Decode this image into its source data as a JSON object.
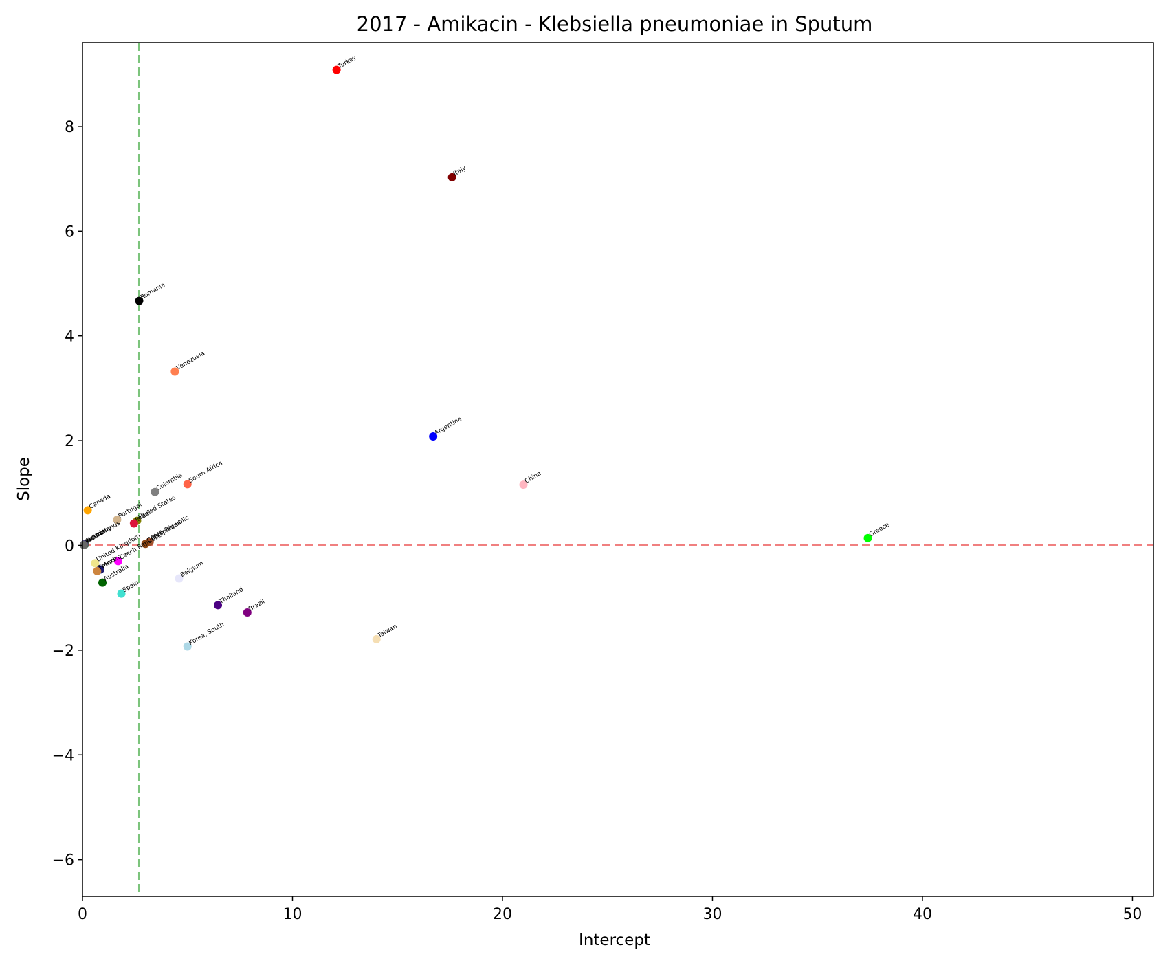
{
  "chart_data": {
    "type": "scatter",
    "title": "2017 - Amikacin - Klebsiella pneumoniae in Sputum",
    "xlabel": "Intercept",
    "ylabel": "Slope",
    "xlim": [
      0,
      51
    ],
    "ylim": [
      -6.7,
      9.6
    ],
    "xticks": [
      0,
      10,
      20,
      30,
      40,
      50
    ],
    "yticks": [
      -6,
      -4,
      -2,
      0,
      2,
      4,
      6,
      8
    ],
    "grid": false,
    "reference_lines": [
      {
        "orientation": "horizontal",
        "value": 0,
        "color": "#f08080",
        "style": "dashed"
      },
      {
        "orientation": "vertical",
        "value": 2.7,
        "color": "#7cc47c",
        "style": "dashed"
      }
    ],
    "points": [
      {
        "label": "Turkey",
        "x": 12.1,
        "y": 9.08,
        "color": "#ff0000"
      },
      {
        "label": "Italy",
        "x": 17.6,
        "y": 7.03,
        "color": "#800000"
      },
      {
        "label": "Romania",
        "x": 2.7,
        "y": 4.67,
        "color": "#000000"
      },
      {
        "label": "Venezuela",
        "x": 4.4,
        "y": 3.32,
        "color": "#ff7f50"
      },
      {
        "label": "Argentina",
        "x": 16.7,
        "y": 2.08,
        "color": "#0000ff"
      },
      {
        "label": "China",
        "x": 21.0,
        "y": 1.16,
        "color": "#ffb6c1"
      },
      {
        "label": "South Africa",
        "x": 5.0,
        "y": 1.17,
        "color": "#ff6347"
      },
      {
        "label": "Colombia",
        "x": 3.45,
        "y": 1.02,
        "color": "#808080"
      },
      {
        "label": "Canada",
        "x": 0.25,
        "y": 0.67,
        "color": "#ffa500"
      },
      {
        "label": "Portugal",
        "x": 1.65,
        "y": 0.49,
        "color": "#d2b48c"
      },
      {
        "label": "United States",
        "x": 2.6,
        "y": 0.47,
        "color": "#808000"
      },
      {
        "label": "Israel",
        "x": 2.45,
        "y": 0.42,
        "color": "#dc143c"
      },
      {
        "label": "Philippines",
        "x": 3.2,
        "y": 0.07,
        "color": "#a0522d"
      },
      {
        "label": "Czech Republic",
        "x": 3.0,
        "y": 0.03,
        "color": "#8b4513"
      },
      {
        "label": "Greece",
        "x": 37.4,
        "y": 0.14,
        "color": "#00ff00"
      },
      {
        "label": "Netherlands",
        "x": 0.12,
        "y": 0.02,
        "color": "#2f4f4f"
      },
      {
        "label": "Germany",
        "x": 0.1,
        "y": 0.02,
        "color": "#556b2f"
      },
      {
        "label": "Austria",
        "x": 0.08,
        "y": 0.02,
        "color": "#483d8b"
      },
      {
        "label": "Ireland",
        "x": 0.06,
        "y": 0.01,
        "color": "#696969"
      },
      {
        "label": "United Kingdom",
        "x": 0.6,
        "y": -0.34,
        "color": "#f0e68c"
      },
      {
        "label": "Czech Republic",
        "x": 1.7,
        "y": -0.3,
        "color": "#ff00ff"
      },
      {
        "label": "Mexico",
        "x": 0.85,
        "y": -0.46,
        "color": "#191970"
      },
      {
        "label": "France",
        "x": 0.7,
        "y": -0.49,
        "color": "#cd853f"
      },
      {
        "label": "Australia",
        "x": 0.95,
        "y": -0.71,
        "color": "#006400"
      },
      {
        "label": "Belgium",
        "x": 4.6,
        "y": -0.63,
        "color": "#e6e6fa"
      },
      {
        "label": "Spain",
        "x": 1.85,
        "y": -0.92,
        "color": "#40e0d0"
      },
      {
        "label": "Thailand",
        "x": 6.45,
        "y": -1.14,
        "color": "#4b0082"
      },
      {
        "label": "Brazil",
        "x": 7.85,
        "y": -1.28,
        "color": "#800080"
      },
      {
        "label": "Taiwan",
        "x": 14.0,
        "y": -1.79,
        "color": "#f5deb3"
      },
      {
        "label": "Korea, South",
        "x": 5.0,
        "y": -1.93,
        "color": "#add8e6"
      }
    ]
  }
}
